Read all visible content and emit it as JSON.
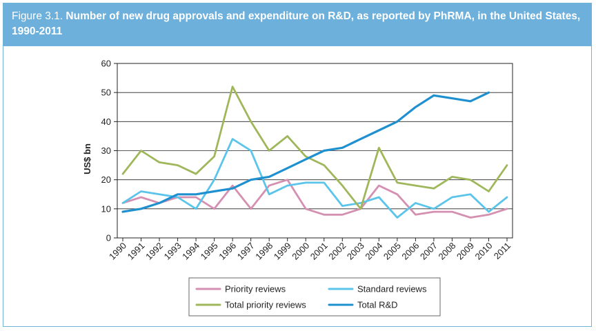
{
  "figure": {
    "label": "Figure 3.1.",
    "title": "Number of new drug approvals and expenditure on R&D, as reported by PhRMA, in the United States, 1990-2011"
  },
  "chart_data": {
    "type": "line",
    "title": "Number of new drug approvals and expenditure on R&D, as reported by PhRMA, in the United States, 1990-2011",
    "ylabel": "US$ bn",
    "xlabel": "",
    "ylim": [
      0,
      60
    ],
    "yticks": [
      0,
      10,
      20,
      30,
      40,
      50,
      60
    ],
    "grid": true,
    "legend_position": "bottom",
    "x": [
      "1990",
      "1991",
      "1992",
      "1993",
      "1994",
      "1995",
      "1996",
      "1997",
      "1998",
      "1999",
      "2000",
      "2001",
      "2002",
      "2003",
      "2004",
      "2005",
      "2006",
      "2007",
      "2008",
      "2009",
      "2010",
      "2011"
    ],
    "series": [
      {
        "name": "Priority reviews",
        "color": "#d48fb1",
        "values": [
          12,
          14,
          12,
          14,
          14,
          10,
          18,
          10,
          18,
          20,
          10,
          8,
          8,
          10,
          18,
          15,
          8,
          9,
          9,
          7,
          8,
          10
        ]
      },
      {
        "name": "Standard reviews",
        "color": "#5bc4ea",
        "values": [
          12,
          16,
          15,
          14,
          10,
          20,
          34,
          30,
          15,
          18,
          19,
          19,
          11,
          12,
          14,
          7,
          12,
          10,
          14,
          15,
          9,
          14
        ]
      },
      {
        "name": "Total priority reviews",
        "color": "#9fb75a",
        "values": [
          22,
          30,
          26,
          25,
          22,
          28,
          52,
          40,
          30,
          35,
          28,
          25,
          18,
          10,
          31,
          19,
          18,
          17,
          21,
          20,
          16,
          25
        ]
      },
      {
        "name": "Total R&D",
        "color": "#1e90d0",
        "values": [
          9,
          10,
          12,
          15,
          15,
          16,
          17,
          20,
          21,
          24,
          27,
          30,
          31,
          34,
          37,
          40,
          45,
          49,
          48,
          47,
          50,
          null
        ]
      }
    ]
  }
}
